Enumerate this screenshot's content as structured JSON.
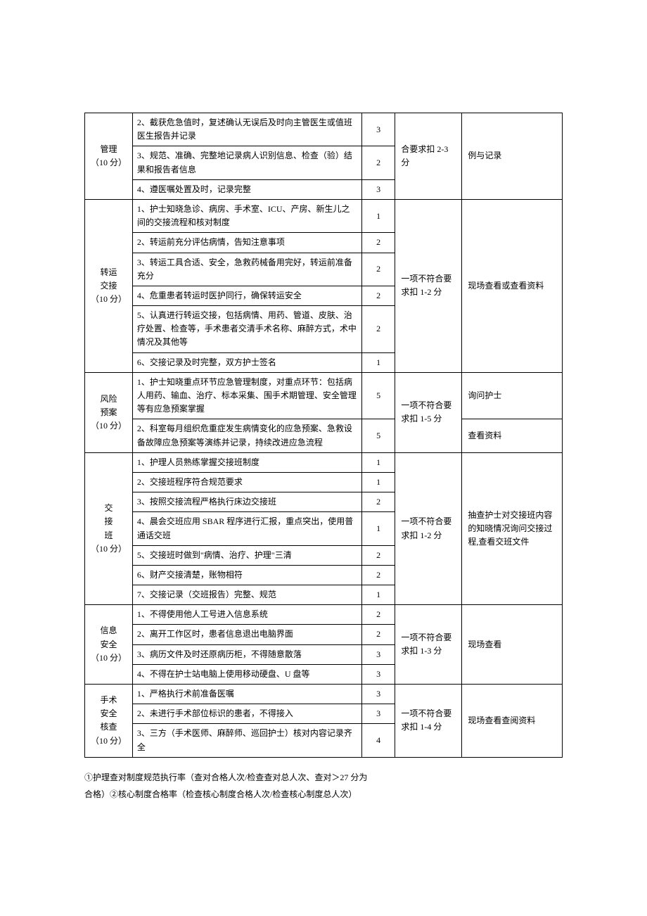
{
  "table": {
    "groups": [
      {
        "cat_lines": [
          "管理",
          "（10 分）"
        ],
        "deduct": "合要求扣 2-3 分",
        "method": "例与记录",
        "rows": [
          {
            "item": "2、截获危急值时，复述确认无误后及时向主管医生或值班医生报告并记录",
            "score": "3",
            "first_deduct": true,
            "first_method": true
          },
          {
            "item": "3、规范、准确、完整地记录病人识别信息、检查（验）结果和报告者信息",
            "score": "2"
          },
          {
            "item": "4、遵医嘱处置及时，记录完整",
            "score": "3"
          }
        ],
        "deduct_span": 3,
        "method_span": 3
      },
      {
        "cat_lines": [
          "转运",
          "交接",
          "（10 分）"
        ],
        "deduct": "一项不符合要求扣 1-2 分",
        "method": "现场查看或查看资料",
        "rows": [
          {
            "item": "1、护士知晓急诊、病房、手术室、ICU、产房、新生儿之间的交接流程和核对制度",
            "score": "1",
            "first_deduct": true,
            "first_method": true
          },
          {
            "item": "2、转运前充分评估病情，告知注意事项",
            "score": "2"
          },
          {
            "item": "3、转运工具合适、安全，急救药械备用完好，转运前准备充分",
            "score": "2"
          },
          {
            "item": "4、危重患者转运时医护同行，确保转运安全",
            "score": "2"
          },
          {
            "item": "5、认真进行转运交接，包括病情、用药、管道、皮肤、治疗处置、检查等，手术患者交清手术名称、麻醉方式，术中情况及其他等",
            "score": "2"
          },
          {
            "item": "6、交接记录及时完整，双方护士签名",
            "score": "1"
          }
        ],
        "deduct_span": 6,
        "method_span": 6
      },
      {
        "cat_lines": [
          "风险",
          "预案",
          "（10 分）"
        ],
        "deduct": "一项不符合要求扣 1-5 分",
        "rows": [
          {
            "item": "1、护士知晓重点环节应急管理制度，对重点环节：包括病人用药、输血、治疗、标本采集、围手术期管理、安全管理等有应急预案掌握",
            "score": "5",
            "first_deduct": true,
            "method": "询问护士"
          },
          {
            "item": "2、科室每月组织危重症发生病情变化的应急预案、急救设备故障应急预案等演练并记录，持续改进应急流程",
            "score": "5",
            "method": "查看资料"
          }
        ],
        "deduct_span": 2
      },
      {
        "cat_lines": [
          "交",
          "接",
          "班",
          "（10 分）"
        ],
        "deduct": "一项不符合要求扣 1-2 分",
        "method": "抽查护士对交接班内容的知晓情况询问交接过程,查看交班文件",
        "rows": [
          {
            "item": "1、护理人员熟练掌握交接班制度",
            "score": "1",
            "first_deduct": true,
            "first_method": true
          },
          {
            "item": "2、交接班程序符合规范要求",
            "score": "1"
          },
          {
            "item": "3、按照交接流程严格执行床边交接班",
            "score": "2"
          },
          {
            "item": "4、晨会交班应用 SBAR 程序进行汇报，重点突出，使用普通话交班",
            "score": "1"
          },
          {
            "item": "5、交接班时做到\"病情、治疗、护理\"三清",
            "score": "2"
          },
          {
            "item": "6、财产交接清楚，账物相符",
            "score": "2"
          },
          {
            "item": "7、交接记录（交班报告）完整、规范",
            "score": "1"
          }
        ],
        "deduct_span": 7,
        "method_span": 7
      },
      {
        "cat_lines": [
          "信息",
          "安全",
          "（10 分）"
        ],
        "deduct": "一项不符合要求扣 1-3 分",
        "method": "现场查看",
        "rows": [
          {
            "item": "1、不得使用他人工号进入信息系统",
            "score": "2",
            "first_deduct": true,
            "first_method": true
          },
          {
            "item": "2、离开工作区时，患者信息退出电脑界面",
            "score": "2"
          },
          {
            "item": "3、病历文件及时还原病历柜，不得随意散落",
            "score": "3"
          },
          {
            "item": "4、不得在护士站电脑上使用移动硬盘、U 盘等",
            "score": "3"
          }
        ],
        "deduct_span": 4,
        "method_span": 4
      },
      {
        "cat_lines": [
          "手术",
          "安全",
          "核查",
          "（10 分）"
        ],
        "deduct": "一项不符合要求扣 1-4 分",
        "method": "现场查看查阅资料",
        "rows": [
          {
            "item": "1、严格执行术前准备医嘱",
            "score": "3",
            "first_deduct": true,
            "first_method": true
          },
          {
            "item": "2、未进行手术部位标识的患者，不得接入",
            "score": "3"
          },
          {
            "item": "3、三方（手术医师、麻醉师、巡回护士）核对内容记录齐全",
            "score": "4"
          }
        ],
        "deduct_span": 3,
        "method_span": 3
      }
    ]
  },
  "footnote": {
    "line1": "①护理查对制度规范执行率（查对合格人次/检查查对总人次、查对＞27 分为",
    "line2": "合格）②核心制度合格率（检查核心制度合格人次/检查核心制度总人次）"
  }
}
